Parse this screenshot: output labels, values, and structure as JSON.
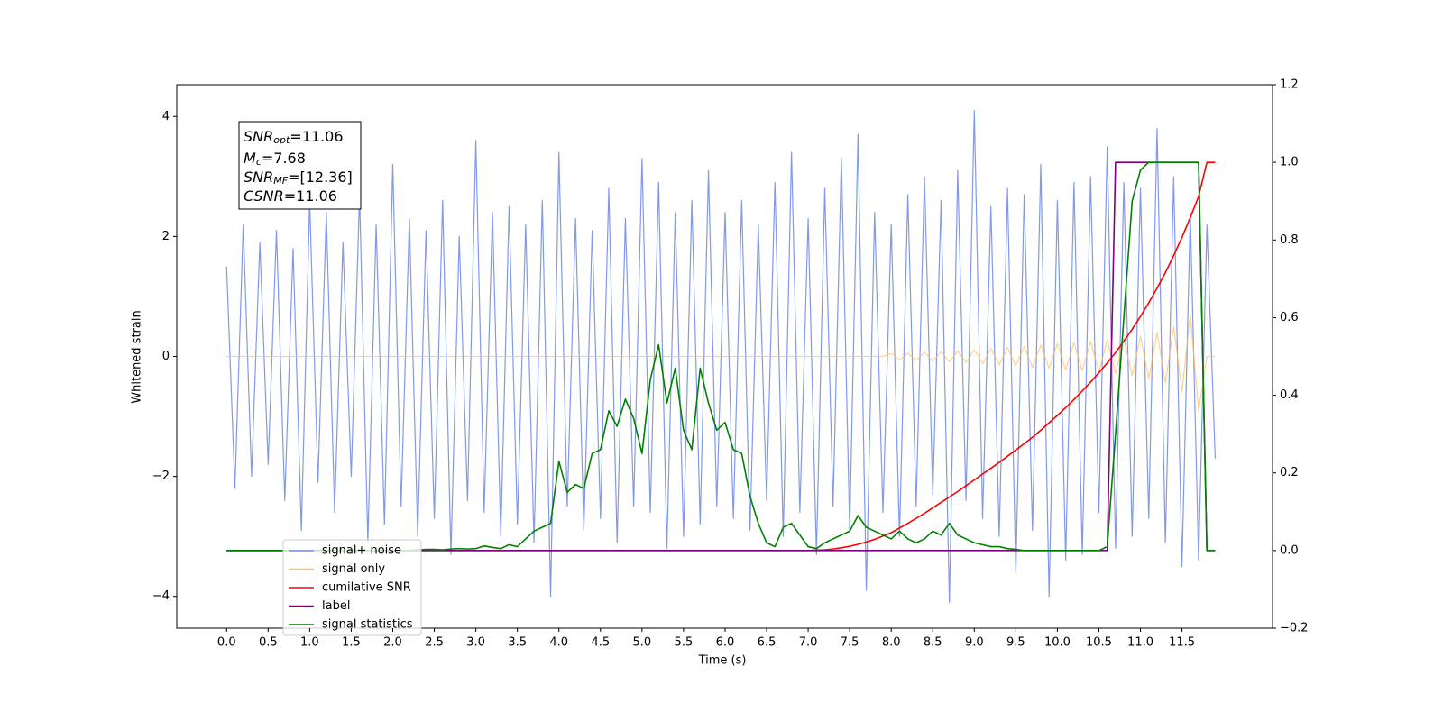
{
  "chart_data": {
    "type": "line",
    "xlabel": "Time (s)",
    "ylabel": "Whitened strain",
    "annotation": [
      {
        "main": "SNR",
        "sub": "opt",
        "rest": "=11.06"
      },
      {
        "main": "M",
        "sub": "c",
        "rest": "=7.68"
      },
      {
        "main": "SNR",
        "sub": "MF",
        "rest": "=[12.36]"
      },
      {
        "main": "CSNR",
        "rest": "=11.06"
      }
    ],
    "xlim": [
      -0.6,
      12.59
    ],
    "ylim": [
      -4.53,
      4.53
    ],
    "y2lim": [
      -0.2,
      1.2
    ],
    "xticks": [
      {
        "value": 0,
        "label": "0.0"
      },
      0.5,
      {
        "value": 1,
        "label": "1.0"
      },
      1.5,
      {
        "value": 2,
        "label": "2.0"
      },
      2.5,
      {
        "value": 3,
        "label": "3.0"
      },
      3.5,
      {
        "value": 4,
        "label": "4.0"
      },
      4.5,
      {
        "value": 5,
        "label": "5.0"
      },
      5.5,
      {
        "value": 6,
        "label": "6.0"
      },
      6.5,
      {
        "value": 7,
        "label": "7.0"
      },
      7.5,
      {
        "value": 8,
        "label": "8.0"
      },
      8.5,
      {
        "value": 9,
        "label": "9.0"
      },
      9.5,
      {
        "value": 10,
        "label": "10.0"
      },
      10.5,
      {
        "value": 11,
        "label": "11.0"
      },
      11.5
    ],
    "yticks": [
      {
        "value": -4,
        "label": "−4"
      },
      {
        "value": -2,
        "label": "−2"
      },
      0,
      2,
      4
    ],
    "y2ticks": [
      {
        "value": -0.2,
        "label": "−0.2"
      },
      {
        "value": 0,
        "label": "0.0"
      },
      0.2,
      0.4,
      0.6,
      0.8,
      {
        "value": 1,
        "label": "1.0"
      },
      1.2
    ],
    "x": [
      0,
      0.1,
      0.2,
      0.3,
      0.4,
      0.5,
      0.6,
      0.7,
      0.8,
      0.9,
      1,
      1.1,
      1.2,
      1.3,
      1.4,
      1.5,
      1.6,
      1.7,
      1.8,
      1.9,
      2,
      2.1,
      2.2,
      2.3,
      2.4,
      2.5,
      2.6,
      2.7,
      2.8,
      2.9,
      3,
      3.1,
      3.2,
      3.3,
      3.4,
      3.5,
      3.6,
      3.7,
      3.8,
      3.9,
      4,
      4.1,
      4.2,
      4.3,
      4.4,
      4.5,
      4.6,
      4.7,
      4.8,
      4.9,
      5,
      5.1,
      5.2,
      5.3,
      5.4,
      5.5,
      5.6,
      5.7,
      5.8,
      5.9,
      6,
      6.1,
      6.2,
      6.3,
      6.4,
      6.5,
      6.6,
      6.7,
      6.8,
      6.9,
      7,
      7.1,
      7.2,
      7.3,
      7.4,
      7.5,
      7.6,
      7.7,
      7.8,
      7.9,
      8,
      8.1,
      8.2,
      8.3,
      8.4,
      8.5,
      8.6,
      8.7,
      8.8,
      8.9,
      9,
      9.1,
      9.2,
      9.3,
      9.4,
      9.5,
      9.6,
      9.7,
      9.8,
      9.9,
      10,
      10.1,
      10.2,
      10.3,
      10.4,
      10.5,
      10.6,
      10.7,
      10.8,
      10.9,
      11,
      11.1,
      11.2,
      11.3,
      11.4,
      11.5,
      11.6,
      11.7,
      11.8,
      11.9
    ],
    "series": [
      {
        "name": "signal+ noise",
        "color": "#7b93e8",
        "values": [
          1.5,
          -2.2,
          2.2,
          -2.0,
          1.9,
          -1.8,
          2.1,
          -2.4,
          1.8,
          -2.9,
          2.6,
          -2.1,
          2.4,
          -2.6,
          1.9,
          -2.0,
          2.7,
          -3.1,
          2.2,
          -2.8,
          3.2,
          -2.5,
          2.3,
          -3.0,
          2.1,
          -2.7,
          2.6,
          -3.3,
          2.0,
          -2.4,
          3.6,
          -2.6,
          2.4,
          -3.0,
          2.5,
          -2.8,
          2.2,
          -3.1,
          2.6,
          -4.0,
          3.4,
          -2.5,
          2.3,
          -2.9,
          2.1,
          -2.7,
          2.8,
          -3.1,
          2.3,
          -2.5,
          3.3,
          -2.6,
          2.9,
          -3.2,
          2.4,
          -3.0,
          2.6,
          -2.8,
          3.1,
          -2.5,
          2.4,
          -2.7,
          2.6,
          -2.9,
          2.2,
          -2.4,
          2.9,
          -3.0,
          3.4,
          -2.6,
          2.3,
          -3.3,
          2.8,
          -2.5,
          3.3,
          -2.9,
          3.7,
          -3.9,
          2.4,
          -2.6,
          2.2,
          -3.0,
          2.7,
          -2.5,
          3.0,
          -2.3,
          2.6,
          -4.1,
          3.1,
          -2.4,
          4.1,
          -2.7,
          2.5,
          -3.0,
          2.8,
          -3.6,
          2.7,
          -2.9,
          3.2,
          -4.0,
          2.6,
          -3.4,
          2.9,
          -3.3,
          3.0,
          -2.6,
          3.5,
          -3.2,
          2.9,
          -3.0,
          2.8,
          -2.7,
          3.8,
          -3.1,
          3.0,
          -3.5,
          2.4,
          -3.4,
          2.2,
          -1.7
        ]
      },
      {
        "name": "signal only",
        "color": "#ffbf5e",
        "values": [
          0,
          0,
          0,
          0,
          0,
          0,
          0,
          0,
          0,
          0,
          0,
          0,
          0,
          0,
          0,
          0,
          0,
          0,
          0,
          0,
          0,
          0,
          0,
          0,
          0,
          0,
          0,
          0,
          0,
          0,
          0,
          0,
          0,
          0,
          0,
          0,
          0,
          0,
          0,
          0,
          0,
          0,
          0,
          0,
          0,
          0,
          0,
          0,
          0,
          0,
          0,
          0,
          0,
          0,
          0,
          0,
          0,
          0,
          0,
          0,
          0,
          0,
          0,
          0,
          0,
          0,
          0,
          0,
          0,
          0,
          0,
          0,
          0,
          0,
          0,
          0,
          0,
          0,
          0,
          0,
          0.05,
          -0.06,
          0.06,
          -0.07,
          0.07,
          -0.08,
          0.08,
          -0.09,
          0.09,
          -0.1,
          0.11,
          -0.12,
          0.13,
          -0.14,
          0.15,
          -0.16,
          0.17,
          -0.18,
          0.19,
          -0.2,
          0.21,
          -0.22,
          0.23,
          -0.24,
          0.25,
          -0.26,
          0.27,
          -0.28,
          0.3,
          -0.32,
          0.34,
          -0.37,
          0.4,
          -0.44,
          0.5,
          -0.58,
          0.7,
          -0.9,
          0,
          0
        ]
      },
      {
        "name": "cumilative SNR",
        "color": "#ff0000",
        "axis": "y2",
        "values": [
          0,
          0,
          0,
          0,
          0,
          0,
          0,
          0,
          0,
          0,
          0,
          0,
          0,
          0,
          0,
          0,
          0,
          0,
          0,
          0,
          0,
          0,
          0,
          0,
          0,
          0,
          0,
          0,
          0,
          0,
          0,
          0,
          0,
          0,
          0,
          0,
          0,
          0,
          0,
          0,
          0,
          0,
          0,
          0,
          0,
          0,
          0,
          0,
          0,
          0,
          0,
          0,
          0,
          0,
          0,
          0,
          0,
          0,
          0,
          0,
          0,
          0,
          0,
          0,
          0,
          0,
          0,
          0,
          0,
          0,
          0,
          0.001,
          0.002,
          0.004,
          0.007,
          0.011,
          0.016,
          0.022,
          0.029,
          0.037,
          0.046,
          0.058,
          0.07,
          0.083,
          0.096,
          0.11,
          0.124,
          0.138,
          0.152,
          0.167,
          0.182,
          0.197,
          0.212,
          0.227,
          0.243,
          0.259,
          0.275,
          0.292,
          0.31,
          0.329,
          0.348,
          0.368,
          0.389,
          0.411,
          0.434,
          0.458,
          0.483,
          0.51,
          0.539,
          0.57,
          0.603,
          0.638,
          0.676,
          0.716,
          0.76,
          0.807,
          0.858,
          0.912,
          1.0,
          1.0
        ]
      },
      {
        "name": "label",
        "color": "#800080",
        "axis": "y2",
        "values": [
          0,
          0,
          0,
          0,
          0,
          0,
          0,
          0,
          0,
          0,
          0,
          0,
          0,
          0,
          0,
          0,
          0,
          0,
          0,
          0,
          0,
          0,
          0,
          0,
          0,
          0,
          0,
          0,
          0,
          0,
          0,
          0,
          0,
          0,
          0,
          0,
          0,
          0,
          0,
          0,
          0,
          0,
          0,
          0,
          0,
          0,
          0,
          0,
          0,
          0,
          0,
          0,
          0,
          0,
          0,
          0,
          0,
          0,
          0,
          0,
          0,
          0,
          0,
          0,
          0,
          0,
          0,
          0,
          0,
          0,
          0,
          0,
          0,
          0,
          0,
          0,
          0,
          0,
          0,
          0,
          0,
          0,
          0,
          0,
          0,
          0,
          0,
          0,
          0,
          0,
          0,
          0,
          0,
          0,
          0,
          0,
          0,
          0,
          0,
          0,
          0,
          0,
          0,
          0,
          0,
          0,
          0,
          1,
          1,
          1,
          1,
          1,
          1,
          1,
          1,
          1,
          1,
          1,
          0,
          0
        ]
      },
      {
        "name": "signal statistics",
        "color": "#008000",
        "axis": "y2",
        "values": [
          0,
          0,
          0,
          0,
          0,
          0,
          0,
          0,
          0,
          0,
          0,
          0,
          0,
          0,
          0,
          0,
          0,
          0,
          0,
          0,
          0,
          0,
          0,
          0.002,
          0.003,
          0.003,
          0.002,
          0.004,
          0.005,
          0.004,
          0.005,
          0.012,
          0.008,
          0.005,
          0.015,
          0.01,
          0.03,
          0.05,
          0.06,
          0.07,
          0.23,
          0.15,
          0.17,
          0.16,
          0.25,
          0.26,
          0.36,
          0.32,
          0.39,
          0.34,
          0.25,
          0.44,
          0.53,
          0.38,
          0.47,
          0.31,
          0.26,
          0.47,
          0.38,
          0.31,
          0.33,
          0.26,
          0.25,
          0.14,
          0.07,
          0.02,
          0.01,
          0.06,
          0.07,
          0.04,
          0.01,
          0.005,
          0.02,
          0.03,
          0.04,
          0.05,
          0.09,
          0.06,
          0.05,
          0.04,
          0.03,
          0.05,
          0.03,
          0.02,
          0.03,
          0.05,
          0.04,
          0.07,
          0.04,
          0.03,
          0.02,
          0.015,
          0.01,
          0.01,
          0.005,
          0.003,
          0,
          0,
          0,
          0,
          0,
          0,
          0,
          0,
          0,
          0,
          0.01,
          0.3,
          0.6,
          0.9,
          0.98,
          1.0,
          1.0,
          1.0,
          1.0,
          1.0,
          1.0,
          1.0,
          0,
          0
        ]
      }
    ],
    "legend": "lower left"
  }
}
